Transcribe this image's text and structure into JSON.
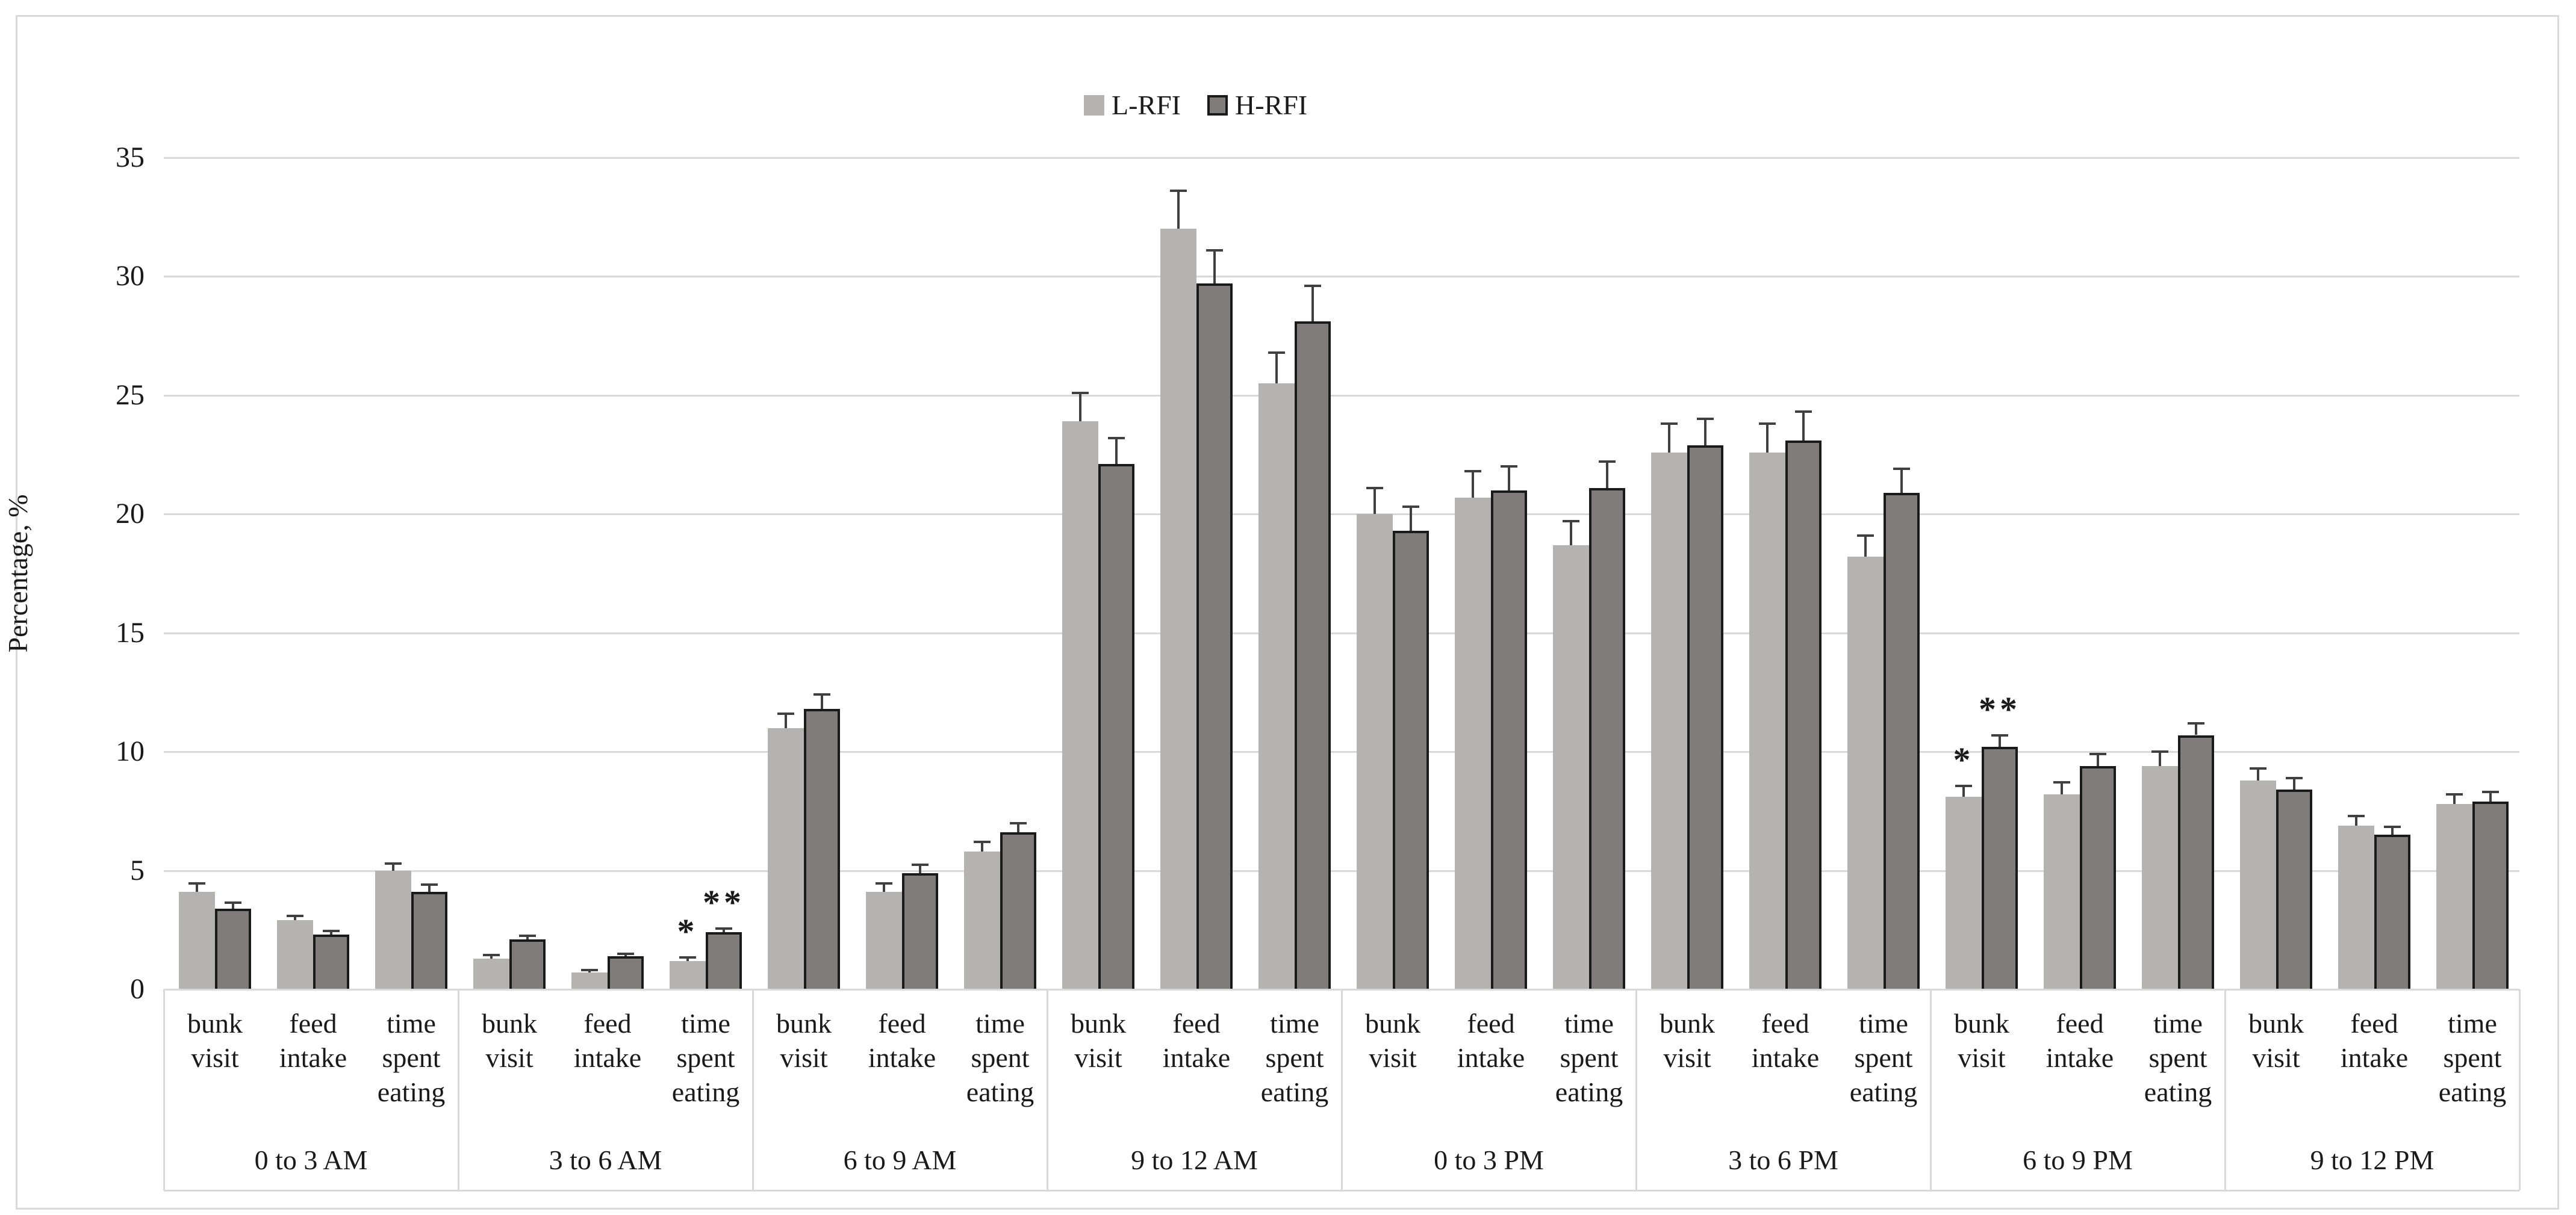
{
  "y_axis": {
    "title": "Percentage, %",
    "ticks": [
      0,
      5,
      10,
      15,
      20,
      25,
      30,
      35
    ],
    "max": 35
  },
  "legend": [
    {
      "label": "L-RFI",
      "color": "#b5b2b2",
      "border": "none"
    },
    {
      "label": "H-RFI",
      "color": "#807c7c",
      "border": "#1a1a1a"
    }
  ],
  "colors": {
    "l_rfi_fill": "#b5b2b2",
    "h_rfi_fill": "#807c7c",
    "h_rfi_border": "#1a1a1a",
    "gridline": "#d9d9d9",
    "error_bar": "#404040",
    "text": "#1a1a1a"
  },
  "measure_label_lines": [
    [
      "bunk",
      "visit"
    ],
    [
      "feed",
      "intake"
    ],
    [
      "time",
      "spent",
      "eating"
    ]
  ],
  "chart_data": {
    "type": "bar",
    "title": "",
    "xlabel": "",
    "ylabel": "Percentage, %",
    "ylim": [
      0,
      35
    ],
    "grid": true,
    "legend_position": "top-center",
    "categories": [
      "0 to 3 AM",
      "3 to 6 AM",
      "6 to 9 AM",
      "9 to 12 AM",
      "0 to 3 PM",
      "3 to 6 PM",
      "6 to 9 PM",
      "9 to 12 PM"
    ],
    "sub_categories": [
      "bunk visit",
      "feed intake",
      "time spent eating"
    ],
    "series": [
      {
        "name": "L-RFI",
        "values": [
          [
            4.1,
            2.9,
            5.0
          ],
          [
            1.3,
            0.7,
            1.2
          ],
          [
            11.0,
            4.1,
            5.8
          ],
          [
            23.9,
            32.0,
            25.5
          ],
          [
            20.0,
            20.7,
            18.7
          ],
          [
            22.6,
            22.6,
            18.2
          ],
          [
            8.1,
            8.2,
            9.4
          ],
          [
            8.8,
            6.9,
            7.8
          ]
        ],
        "errors": [
          [
            0.35,
            0.2,
            0.3
          ],
          [
            0.15,
            0.1,
            0.15
          ],
          [
            0.6,
            0.35,
            0.4
          ],
          [
            1.2,
            1.6,
            1.3
          ],
          [
            1.1,
            1.1,
            1.0
          ],
          [
            1.2,
            1.2,
            0.9
          ],
          [
            0.45,
            0.5,
            0.6
          ],
          [
            0.5,
            0.4,
            0.4
          ]
        ]
      },
      {
        "name": "H-RFI",
        "values": [
          [
            3.4,
            2.3,
            4.1
          ],
          [
            2.1,
            1.4,
            2.4
          ],
          [
            11.8,
            4.9,
            6.6
          ],
          [
            22.1,
            29.7,
            28.1
          ],
          [
            19.3,
            21.0,
            21.1
          ],
          [
            22.9,
            23.1,
            20.9
          ],
          [
            10.2,
            9.4,
            10.7
          ],
          [
            8.4,
            6.5,
            7.9
          ]
        ],
        "errors": [
          [
            0.25,
            0.15,
            0.3
          ],
          [
            0.15,
            0.1,
            0.15
          ],
          [
            0.6,
            0.35,
            0.4
          ],
          [
            1.1,
            1.4,
            1.5
          ],
          [
            1.0,
            1.0,
            1.1
          ],
          [
            1.1,
            1.2,
            1.0
          ],
          [
            0.5,
            0.5,
            0.5
          ],
          [
            0.5,
            0.35,
            0.4
          ]
        ]
      }
    ],
    "annotations": [
      {
        "category": "3 to 6 AM",
        "sub_category": "time spent eating",
        "series": "L-RFI",
        "text": "*"
      },
      {
        "category": "3 to 6 AM",
        "sub_category": "time spent eating",
        "series": "H-RFI",
        "text": "**"
      },
      {
        "category": "6 to 9 PM",
        "sub_category": "bunk visit",
        "series": "L-RFI",
        "text": "*"
      },
      {
        "category": "6 to 9 PM",
        "sub_category": "bunk visit",
        "series": "H-RFI",
        "text": "**"
      }
    ]
  }
}
